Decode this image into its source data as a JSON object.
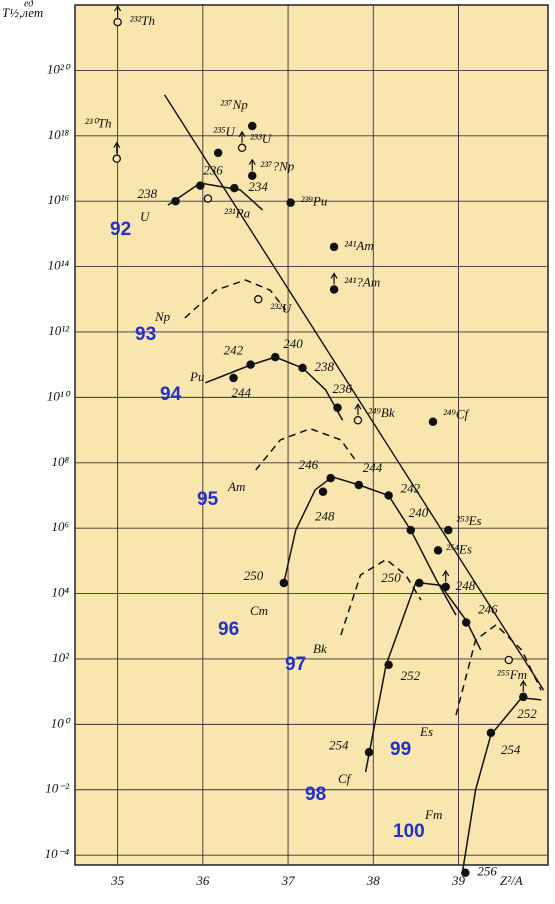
{
  "chart_data": {
    "type": "scatter",
    "y_label": "T½,лет",
    "y_label_sup": "ед",
    "x_label": "Z²/A",
    "log_y": true,
    "grid": true,
    "background": "#f8e6ae",
    "xlim": [
      34.5,
      40.05
    ],
    "xticks": [
      35,
      36,
      37,
      38,
      39
    ],
    "ylim": [
      5e-05,
      1e+22
    ],
    "yticks": [
      {
        "value": 1e+20,
        "label": "10²⁰"
      },
      {
        "value": 1e+18,
        "label": "10¹⁸"
      },
      {
        "value": 1e+16,
        "label": "10¹⁶"
      },
      {
        "value": 100000000000000.0,
        "label": "10¹⁴"
      },
      {
        "value": 1000000000000.0,
        "label": "10¹²"
      },
      {
        "value": 10000000000.0,
        "label": "10¹⁰"
      },
      {
        "value": 100000000.0,
        "label": "10⁸"
      },
      {
        "value": 1000000.0,
        "label": "10⁶"
      },
      {
        "value": 10000.0,
        "label": "10⁴"
      },
      {
        "value": 100,
        "label": "10²"
      },
      {
        "value": 1,
        "label": "10⁰"
      },
      {
        "value": 0.01,
        "label": "10⁻²"
      },
      {
        "value": 0.0001,
        "label": "10⁻⁴"
      }
    ],
    "trend": {
      "x": [
        35.55,
        40.0
      ],
      "values": [
        1.8e+19,
        11
      ]
    },
    "curves": [
      {
        "z": "92",
        "symbol": "U",
        "dashed": false,
        "x": [
          35.59,
          35.97,
          36.44,
          36.7
        ],
        "values": [
          7600000000000000.0,
          3.6e+16,
          2.2e+16,
          5400000000000000.0
        ]
      },
      {
        "z": "93",
        "symbol": "Np",
        "dashed": true,
        "x": [
          35.79,
          36.15,
          36.5,
          36.79,
          36.97
        ],
        "values": [
          2700000000000.0,
          19000000000000.0,
          39000000000000.0,
          19000000000000.0,
          4700000000000.0
        ]
      },
      {
        "z": "94",
        "symbol": "Pu",
        "dashed": false,
        "x": [
          36.03,
          36.56,
          36.85,
          37.17,
          37.44,
          37.64
        ],
        "values": [
          28000000000.0,
          98000000000.0,
          170000000000.0,
          79000000000.0,
          17000000000.0,
          2000000000.0
        ]
      },
      {
        "z": "95",
        "symbol": "Am",
        "dashed": true,
        "x": [
          36.62,
          36.91,
          37.26,
          37.62,
          37.79
        ],
        "values": [
          60000000.0,
          500000000.0,
          1100000000.0,
          500000000.0,
          120000000.0
        ]
      },
      {
        "z": "96",
        "symbol": "Cm",
        "dashed": false,
        "x": [
          36.95,
          37.09,
          37.32,
          37.52,
          37.83,
          38.18,
          38.44,
          38.74,
          38.97
        ],
        "values": [
          21000.0,
          870000.0,
          15000000.0,
          37000000.0,
          21000000.0,
          10000000.0,
          870000.0,
          26000.0,
          2200
        ]
      },
      {
        "z": "97",
        "symbol": "Bk",
        "dashed": true,
        "x": [
          37.62,
          37.85,
          38.15,
          38.38,
          38.56
        ],
        "values": [
          540,
          37000.0,
          110000.0,
          37000.0,
          6300
        ]
      },
      {
        "z": "98",
        "symbol": "Cf",
        "dashed": false,
        "x": [
          37.91,
          38.15,
          38.5,
          38.79,
          39.09,
          39.26
        ],
        "values": [
          0.035,
          66,
          22000.0,
          18000.0,
          1500,
          190
        ]
      },
      {
        "z": "99",
        "symbol": "Es",
        "dashed": true,
        "x": [
          38.97,
          39.2,
          39.44,
          39.74,
          39.97
        ],
        "values": [
          1.9,
          380,
          1100,
          190,
          11
        ]
      },
      {
        "z": "100",
        "symbol": "Fm",
        "dashed": false,
        "x": [
          39.05,
          39.2,
          39.38,
          39.74,
          39.97
        ],
        "values": [
          3.5e-05,
          0.01,
          0.48,
          6.5,
          5.6
        ]
      }
    ],
    "points": [
      {
        "label": "²³²Th",
        "x": 35.0,
        "value": 3e+21,
        "open": true,
        "arrow": true
      },
      {
        "label": "²³⁰Th",
        "x": 34.99,
        "value": 2e+17,
        "open": true,
        "arrow": true
      },
      {
        "label": "²³⁵U",
        "x": 36.18,
        "value": 3e+17,
        "open": false,
        "arrow": false
      },
      {
        "label": "²³³U",
        "x": 36.46,
        "value": 4.3e+17,
        "open": true,
        "arrow": true
      },
      {
        "label": "²³⁷Np",
        "x": 36.58,
        "value": 2e+18,
        "open": false,
        "arrow": false
      },
      {
        "label": "²³⁷?Np",
        "x": 36.58,
        "value": 6e+16,
        "open": false,
        "arrow": true
      },
      {
        "label": "238",
        "x": 35.68,
        "value": 1e+16,
        "open": false,
        "arrow": false
      },
      {
        "label": "236",
        "x": 35.97,
        "value": 3e+16,
        "open": false,
        "arrow": false
      },
      {
        "label": "234",
        "x": 36.37,
        "value": 2.5e+16,
        "open": false,
        "arrow": false
      },
      {
        "label": "²³¹Pa",
        "x": 36.06,
        "value": 1.2e+16,
        "open": true,
        "arrow": false
      },
      {
        "label": "²³⁹Pu",
        "x": 37.03,
        "value": 9000000000000000.0,
        "open": false,
        "arrow": false
      },
      {
        "label": "²⁴¹Am",
        "x": 37.54,
        "value": 400000000000000.0,
        "open": false,
        "arrow": false
      },
      {
        "label": "²⁴¹?Am",
        "x": 37.54,
        "value": 20000000000000.0,
        "open": false,
        "arrow": true
      },
      {
        "label": "²³²U",
        "x": 36.65,
        "value": 10000000000000.0,
        "open": true,
        "arrow": false
      },
      {
        "label": "242",
        "x": 36.56,
        "value": 100000000000.0,
        "open": false,
        "arrow": false
      },
      {
        "label": "244",
        "x": 36.36,
        "value": 39000000000.0,
        "open": false,
        "arrow": false
      },
      {
        "label": "240",
        "x": 36.85,
        "value": 170000000000.0,
        "open": false,
        "arrow": false
      },
      {
        "label": "238",
        "x": 37.17,
        "value": 80000000000.0,
        "open": false,
        "arrow": false
      },
      {
        "label": "236",
        "x": 37.58,
        "value": 4800000000.0,
        "open": false,
        "arrow": false
      },
      {
        "label": "²⁴⁹Bk",
        "x": 37.82,
        "value": 2000000000.0,
        "open": true,
        "arrow": true
      },
      {
        "label": "²⁴⁹Cf",
        "x": 38.7,
        "value": 1800000000.0,
        "open": false,
        "arrow": false
      },
      {
        "label": "246",
        "x": 37.5,
        "value": 34000000.0,
        "open": false,
        "arrow": false
      },
      {
        "label": "248",
        "x": 37.41,
        "value": 13000000.0,
        "open": false,
        "arrow": false
      },
      {
        "label": "244",
        "x": 37.83,
        "value": 21000000.0,
        "open": false,
        "arrow": false
      },
      {
        "label": "242",
        "x": 38.18,
        "value": 10000000.0,
        "open": false,
        "arrow": false
      },
      {
        "label": "240",
        "x": 38.44,
        "value": 870000.0,
        "open": false,
        "arrow": false
      },
      {
        "label": "²⁵³Es",
        "x": 38.88,
        "value": 870000.0,
        "open": false,
        "arrow": false
      },
      {
        "label": "²⁵⁴Es",
        "x": 38.76,
        "value": 210000.0,
        "open": false,
        "arrow": false
      },
      {
        "label": "250",
        "x": 36.95,
        "value": 21000.0,
        "open": false,
        "arrow": false
      },
      {
        "label": "250",
        "x": 38.54,
        "value": 21000.0,
        "open": false,
        "arrow": false
      },
      {
        "label": "248",
        "x": 38.85,
        "value": 16000.0,
        "open": false,
        "arrow": true
      },
      {
        "label": "246",
        "x": 39.09,
        "value": 1300,
        "open": false,
        "arrow": false
      },
      {
        "label": "252",
        "x": 38.18,
        "value": 66,
        "open": false,
        "arrow": false
      },
      {
        "label": "254",
        "x": 37.95,
        "value": 0.14,
        "open": false,
        "arrow": false
      },
      {
        "label": "²⁵⁵Fm",
        "x": 39.59,
        "value": 93,
        "open": true,
        "arrow": false
      },
      {
        "label": "252",
        "x": 39.76,
        "value": 6.9,
        "open": false,
        "arrow": true
      },
      {
        "label": "254",
        "x": 39.38,
        "value": 0.55,
        "open": false,
        "arrow": false
      },
      {
        "label": "256",
        "x": 39.08,
        "value": 2.9e-05,
        "open": false,
        "arrow": false
      }
    ]
  }
}
